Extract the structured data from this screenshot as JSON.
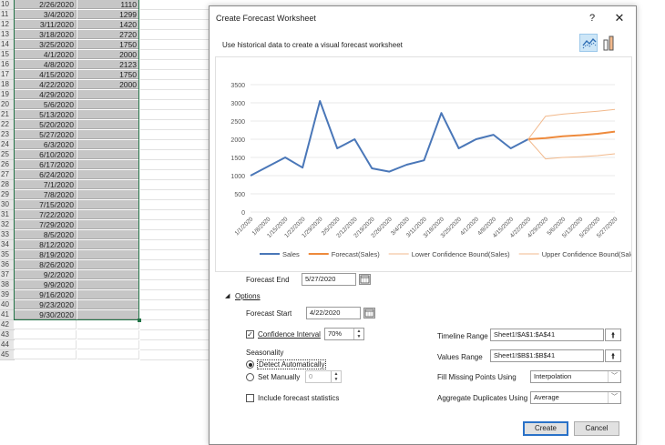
{
  "spreadsheet": {
    "rows": [
      {
        "n": "10",
        "date": "2/26/2020",
        "sales": "1110"
      },
      {
        "n": "11",
        "date": "3/4/2020",
        "sales": "1299"
      },
      {
        "n": "12",
        "date": "3/11/2020",
        "sales": "1420"
      },
      {
        "n": "13",
        "date": "3/18/2020",
        "sales": "2720"
      },
      {
        "n": "14",
        "date": "3/25/2020",
        "sales": "1750"
      },
      {
        "n": "15",
        "date": "4/1/2020",
        "sales": "2000"
      },
      {
        "n": "16",
        "date": "4/8/2020",
        "sales": "2123"
      },
      {
        "n": "17",
        "date": "4/15/2020",
        "sales": "1750"
      },
      {
        "n": "18",
        "date": "4/22/2020",
        "sales": "2000"
      },
      {
        "n": "19",
        "date": "4/29/2020",
        "sales": ""
      },
      {
        "n": "20",
        "date": "5/6/2020",
        "sales": ""
      },
      {
        "n": "21",
        "date": "5/13/2020",
        "sales": ""
      },
      {
        "n": "22",
        "date": "5/20/2020",
        "sales": ""
      },
      {
        "n": "23",
        "date": "5/27/2020",
        "sales": ""
      },
      {
        "n": "24",
        "date": "6/3/2020",
        "sales": ""
      },
      {
        "n": "25",
        "date": "6/10/2020",
        "sales": ""
      },
      {
        "n": "26",
        "date": "6/17/2020",
        "sales": ""
      },
      {
        "n": "27",
        "date": "6/24/2020",
        "sales": ""
      },
      {
        "n": "28",
        "date": "7/1/2020",
        "sales": ""
      },
      {
        "n": "29",
        "date": "7/8/2020",
        "sales": ""
      },
      {
        "n": "30",
        "date": "7/15/2020",
        "sales": ""
      },
      {
        "n": "31",
        "date": "7/22/2020",
        "sales": ""
      },
      {
        "n": "32",
        "date": "7/29/2020",
        "sales": ""
      },
      {
        "n": "33",
        "date": "8/5/2020",
        "sales": ""
      },
      {
        "n": "34",
        "date": "8/12/2020",
        "sales": ""
      },
      {
        "n": "35",
        "date": "8/19/2020",
        "sales": ""
      },
      {
        "n": "36",
        "date": "8/26/2020",
        "sales": ""
      },
      {
        "n": "37",
        "date": "9/2/2020",
        "sales": ""
      },
      {
        "n": "38",
        "date": "9/9/2020",
        "sales": ""
      },
      {
        "n": "39",
        "date": "9/16/2020",
        "sales": ""
      },
      {
        "n": "40",
        "date": "9/23/2020",
        "sales": ""
      },
      {
        "n": "41",
        "date": "9/30/2020",
        "sales": ""
      },
      {
        "n": "42",
        "date": "",
        "sales": ""
      },
      {
        "n": "43",
        "date": "",
        "sales": ""
      },
      {
        "n": "44",
        "date": "",
        "sales": ""
      },
      {
        "n": "45",
        "date": "",
        "sales": ""
      }
    ],
    "selected_rows": 32,
    "selection_color": "#217346"
  },
  "dialog": {
    "title": "Create Forecast Worksheet",
    "help": "?",
    "close": "✕",
    "subtitle": "Use historical data to create a visual forecast worksheet",
    "line_chart_icon": "line-chart-icon",
    "column_chart_icon": "column-chart-icon",
    "forecast_end_label": "Forecast End",
    "forecast_end_value": "5/27/2020",
    "options_label": "Options",
    "forecast_start_label": "Forecast Start",
    "forecast_start_value": "4/22/2020",
    "confidence_label": "Confidence Interval",
    "confidence_checked": true,
    "confidence_value": "70%",
    "seasonality_label": "Seasonality",
    "detect_auto_label": "Detect Automatically",
    "set_manually_label": "Set Manually",
    "set_manually_value": "0",
    "include_stats_label": "Include forecast statistics",
    "timeline_range_label": "Timeline Range",
    "timeline_range_value": "Sheet1!$A$1:$A$41",
    "values_range_label": "Values Range",
    "values_range_value": "Sheet1!$B$1:$B$41",
    "fill_missing_label": "Fill Missing Points Using",
    "fill_missing_value": "Interpolation",
    "aggregate_label": "Aggregate Duplicates Using",
    "aggregate_value": "Average",
    "create_label": "Create",
    "cancel_label": "Cancel"
  },
  "chart_data": {
    "type": "line",
    "categories": [
      "1/1/2020",
      "1/8/2020",
      "1/15/2020",
      "1/22/2020",
      "1/29/2020",
      "2/5/2020",
      "2/12/2020",
      "2/19/2020",
      "2/26/2020",
      "3/4/2020",
      "3/11/2020",
      "3/18/2020",
      "3/25/2020",
      "4/1/2020",
      "4/8/2020",
      "4/15/2020",
      "4/22/2020",
      "4/29/2020",
      "5/6/2020",
      "5/13/2020",
      "5/20/2020",
      "5/27/2020"
    ],
    "yticks": [
      "0",
      "500",
      "1000",
      "1500",
      "2000",
      "2500",
      "3000",
      "3500"
    ],
    "ylim": [
      0,
      3500
    ],
    "grid": true,
    "legend_position": "bottom",
    "series": [
      {
        "name": "Sales",
        "color": "#4a77b8",
        "values": [
          1000,
          1250,
          1500,
          1220,
          3050,
          1750,
          2000,
          1200,
          1110,
          1299,
          1420,
          2720,
          1750,
          2000,
          2123,
          1750,
          2000,
          null,
          null,
          null,
          null,
          null
        ]
      },
      {
        "name": "Forecast(Sales)",
        "color": "#ee8a3c",
        "values": [
          null,
          null,
          null,
          null,
          null,
          null,
          null,
          null,
          null,
          null,
          null,
          null,
          null,
          null,
          null,
          null,
          2000,
          2030,
          2080,
          2110,
          2150,
          2210
        ]
      },
      {
        "name": "Lower Confidence Bound(Sales)",
        "color": "#f2b98c",
        "values": [
          null,
          null,
          null,
          null,
          null,
          null,
          null,
          null,
          null,
          null,
          null,
          null,
          null,
          null,
          null,
          null,
          2000,
          1460,
          1500,
          1520,
          1550,
          1600
        ]
      },
      {
        "name": "Upper Confidence Bound(Sales)",
        "color": "#f2b98c",
        "values": [
          null,
          null,
          null,
          null,
          null,
          null,
          null,
          null,
          null,
          null,
          null,
          null,
          null,
          null,
          null,
          null,
          2000,
          2630,
          2690,
          2730,
          2770,
          2820
        ]
      }
    ]
  }
}
